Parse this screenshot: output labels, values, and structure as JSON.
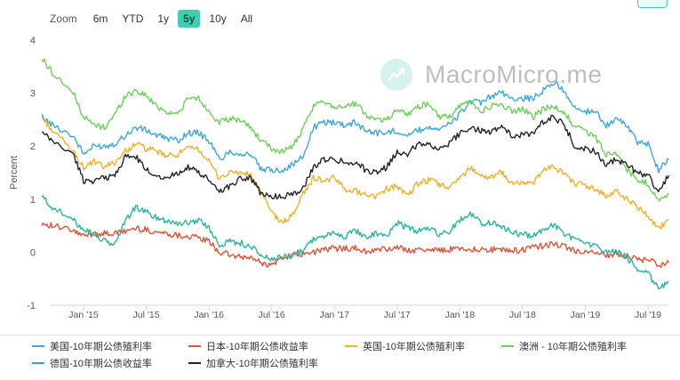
{
  "zoom": {
    "label": "Zoom",
    "buttons": [
      {
        "label": "6m",
        "active": false
      },
      {
        "label": "YTD",
        "active": false
      },
      {
        "label": "1y",
        "active": false
      },
      {
        "label": "5y",
        "active": true
      },
      {
        "label": "10y",
        "active": false
      },
      {
        "label": "All",
        "active": false
      }
    ]
  },
  "watermark": {
    "text": "MacroMicro.me",
    "icon": "chart-logo-icon"
  },
  "chart_data": {
    "type": "line",
    "ylabel": "Percent",
    "ylim": [
      -1,
      4
    ],
    "y_ticks": [
      "4",
      "3",
      "2",
      "1",
      "0",
      "-1"
    ],
    "x_ticks": [
      "Jan '15",
      "Jul '15",
      "Jan '16",
      "Jul '16",
      "Jan '17",
      "Jul '17",
      "Jan '18",
      "Jul '18",
      "Jan '19",
      "Jul '19"
    ],
    "x": [
      "2014-09",
      "2014-10",
      "2014-12",
      "2015-01",
      "2015-02",
      "2015-03",
      "2015-04",
      "2015-05",
      "2015-06",
      "2015-07",
      "2015-08",
      "2015-09",
      "2015-10",
      "2015-11",
      "2015-12",
      "2016-01",
      "2016-02",
      "2016-03",
      "2016-04",
      "2016-05",
      "2016-06",
      "2016-07",
      "2016-08",
      "2016-09",
      "2016-10",
      "2016-11",
      "2016-12",
      "2017-01",
      "2017-02",
      "2017-03",
      "2017-04",
      "2017-05",
      "2017-06",
      "2017-07",
      "2017-08",
      "2017-09",
      "2017-10",
      "2017-11",
      "2017-12",
      "2018-01",
      "2018-02",
      "2018-03",
      "2018-04",
      "2018-05",
      "2018-06",
      "2018-07",
      "2018-08",
      "2018-09",
      "2018-10",
      "2018-11",
      "2018-12",
      "2019-01",
      "2019-02",
      "2019-03",
      "2019-04",
      "2019-05",
      "2019-06",
      "2019-07",
      "2019-08",
      "2019-09"
    ],
    "series": [
      {
        "name": "美国-10年期公债殖利率",
        "color": "#3fa9d6",
        "values": [
          2.55,
          2.4,
          2.2,
          1.85,
          2.0,
          2.0,
          2.05,
          2.2,
          2.35,
          2.3,
          2.2,
          2.15,
          2.1,
          2.25,
          2.25,
          2.1,
          1.75,
          1.9,
          1.85,
          1.85,
          1.55,
          1.55,
          1.55,
          1.65,
          1.8,
          2.35,
          2.45,
          2.45,
          2.4,
          2.45,
          2.3,
          2.25,
          2.25,
          2.3,
          2.2,
          2.3,
          2.35,
          2.35,
          2.4,
          2.6,
          2.85,
          2.8,
          2.95,
          3.0,
          2.9,
          2.9,
          2.9,
          3.05,
          3.2,
          3.05,
          2.7,
          2.65,
          2.65,
          2.4,
          2.5,
          2.4,
          2.05,
          2.05,
          1.55,
          1.75
        ]
      },
      {
        "name": "日本-10年期公债收益率",
        "color": "#e0533a",
        "values": [
          0.55,
          0.5,
          0.4,
          0.3,
          0.35,
          0.35,
          0.35,
          0.4,
          0.45,
          0.42,
          0.38,
          0.35,
          0.32,
          0.3,
          0.27,
          0.2,
          0.0,
          -0.05,
          -0.1,
          -0.1,
          -0.2,
          -0.25,
          -0.1,
          -0.05,
          -0.05,
          0.0,
          0.05,
          0.07,
          0.08,
          0.07,
          0.01,
          0.04,
          0.06,
          0.08,
          0.05,
          0.03,
          0.06,
          0.04,
          0.05,
          0.08,
          0.06,
          0.05,
          0.05,
          0.04,
          0.03,
          0.04,
          0.1,
          0.12,
          0.15,
          0.1,
          0.03,
          0.0,
          -0.03,
          -0.05,
          -0.04,
          -0.08,
          -0.14,
          -0.13,
          -0.25,
          -0.2
        ]
      },
      {
        "name": "英国-10年期公债殖利率",
        "color": "#f0b02a",
        "values": [
          2.55,
          2.3,
          1.9,
          1.6,
          1.7,
          1.6,
          1.7,
          1.9,
          2.05,
          1.95,
          1.9,
          1.8,
          1.85,
          1.95,
          1.95,
          1.7,
          1.4,
          1.5,
          1.5,
          1.45,
          1.1,
          0.75,
          0.55,
          0.7,
          1.1,
          1.4,
          1.35,
          1.4,
          1.2,
          1.15,
          1.1,
          1.05,
          1.2,
          1.25,
          1.05,
          1.3,
          1.35,
          1.3,
          1.2,
          1.4,
          1.6,
          1.45,
          1.4,
          1.5,
          1.3,
          1.3,
          1.3,
          1.55,
          1.6,
          1.5,
          1.3,
          1.25,
          1.2,
          1.05,
          1.15,
          1.0,
          0.85,
          0.7,
          0.45,
          0.6
        ]
      },
      {
        "name": "澳洲 - 10年期公债殖利率",
        "color": "#6ccf5b",
        "values": [
          3.65,
          3.4,
          3.0,
          2.55,
          2.4,
          2.35,
          2.6,
          2.95,
          3.05,
          2.95,
          2.75,
          2.65,
          2.6,
          2.9,
          2.9,
          2.65,
          2.45,
          2.5,
          2.5,
          2.35,
          2.1,
          1.95,
          1.9,
          2.0,
          2.3,
          2.75,
          2.85,
          2.75,
          2.75,
          2.8,
          2.6,
          2.5,
          2.5,
          2.7,
          2.6,
          2.75,
          2.8,
          2.55,
          2.55,
          2.75,
          2.85,
          2.65,
          2.75,
          2.8,
          2.65,
          2.7,
          2.55,
          2.7,
          2.75,
          2.65,
          2.35,
          2.3,
          2.15,
          1.85,
          1.85,
          1.55,
          1.35,
          1.3,
          0.95,
          1.1
        ]
      },
      {
        "name": "德国-10年期公债收益率",
        "color": "#2bb59a",
        "values": [
          1.05,
          0.85,
          0.6,
          0.45,
          0.35,
          0.2,
          0.15,
          0.6,
          0.85,
          0.75,
          0.65,
          0.6,
          0.55,
          0.55,
          0.62,
          0.45,
          0.15,
          0.2,
          0.18,
          0.1,
          -0.05,
          -0.15,
          -0.1,
          -0.05,
          0.05,
          0.25,
          0.3,
          0.35,
          0.3,
          0.4,
          0.3,
          0.35,
          0.3,
          0.55,
          0.45,
          0.4,
          0.45,
          0.35,
          0.4,
          0.6,
          0.75,
          0.55,
          0.55,
          0.5,
          0.35,
          0.35,
          0.3,
          0.45,
          0.5,
          0.35,
          0.25,
          0.15,
          0.1,
          0.0,
          0.0,
          -0.1,
          -0.3,
          -0.4,
          -0.7,
          -0.55
        ]
      },
      {
        "name": "加拿大-10年期公债殖利率",
        "color": "#222233",
        "values": [
          2.25,
          2.1,
          1.85,
          1.35,
          1.35,
          1.4,
          1.45,
          1.8,
          1.8,
          1.55,
          1.45,
          1.4,
          1.5,
          1.6,
          1.5,
          1.35,
          1.15,
          1.25,
          1.4,
          1.4,
          1.1,
          1.05,
          1.05,
          1.1,
          1.2,
          1.6,
          1.75,
          1.75,
          1.7,
          1.7,
          1.55,
          1.5,
          1.6,
          1.9,
          1.85,
          2.05,
          2.05,
          1.95,
          2.05,
          2.25,
          2.35,
          2.3,
          2.25,
          2.4,
          2.2,
          2.2,
          2.25,
          2.45,
          2.55,
          2.4,
          2.0,
          1.95,
          1.9,
          1.65,
          1.75,
          1.65,
          1.5,
          1.45,
          1.15,
          1.45
        ]
      }
    ],
    "grid": false,
    "legend_position": "bottom"
  }
}
